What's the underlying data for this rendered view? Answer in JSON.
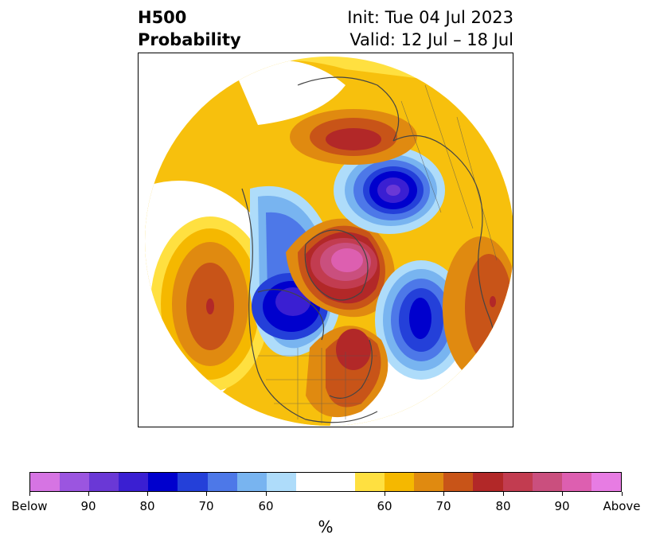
{
  "title": {
    "left_line1": "H500",
    "left_line2": "Probability",
    "right_line1": "Init: Tue 04 Jul 2023",
    "right_line2": "Valid: 12 Jul – 18 Jul"
  },
  "map": {
    "projection": "north-polar-stereographic",
    "variable": "500 hPa geopotential height probability",
    "anomalies": [
      {
        "region": "north-central-siberia",
        "sign": "below",
        "max_level": "Below"
      },
      {
        "region": "central-canada-hudson",
        "sign": "below",
        "max_level": 90
      },
      {
        "region": "north-atlantic",
        "sign": "below",
        "max_level": 80
      },
      {
        "region": "baffin-greenland",
        "sign": "above",
        "max_level": "Above"
      },
      {
        "region": "eastern-north-america",
        "sign": "above",
        "max_level": 80
      },
      {
        "region": "north-pacific",
        "sign": "above",
        "max_level": 80
      },
      {
        "region": "western-europe-coast",
        "sign": "above",
        "max_level": 80
      },
      {
        "region": "kara-sea-russia",
        "sign": "above",
        "max_level": 80
      }
    ]
  },
  "colorbar": {
    "colors": [
      "#d674e3",
      "#9b55e0",
      "#6a38d6",
      "#3a1fd2",
      "#0000cd",
      "#2440d9",
      "#4d78e8",
      "#78b4f0",
      "#aedcfa",
      "#ffffff",
      "#ffe040",
      "#f5b800",
      "#e08a10",
      "#c85418",
      "#b22828",
      "#c23c50",
      "#ca4f7e",
      "#dd5fb0",
      "#e77ce3"
    ],
    "tick_labels": [
      "Below",
      "90",
      "80",
      "70",
      "60",
      "60",
      "70",
      "80",
      "90",
      "Above"
    ],
    "unit": "%"
  }
}
